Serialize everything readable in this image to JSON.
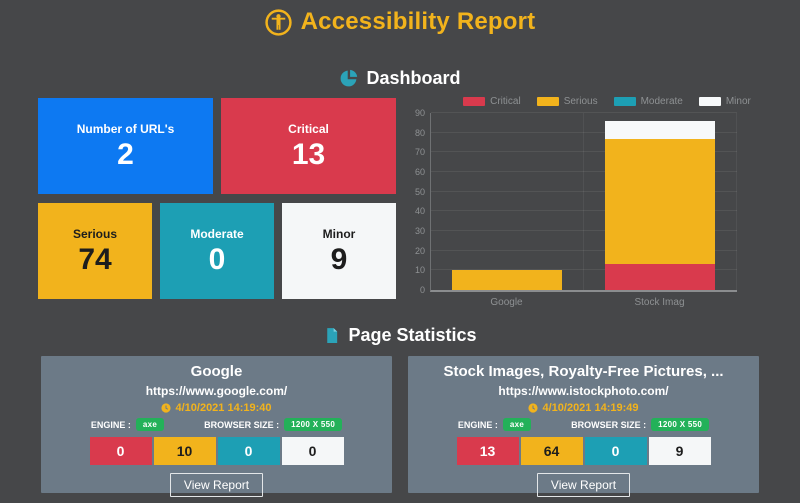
{
  "app": {
    "title": "Accessibility Report"
  },
  "dashboard": {
    "heading": "Dashboard",
    "cards": [
      {
        "label": "Number of URL's",
        "value": "2",
        "color": "#0D79F2"
      },
      {
        "label": "Critical",
        "value": "13",
        "color": "#D93A4D"
      },
      {
        "label": "Serious",
        "value": "74",
        "color": "#F2B31C"
      },
      {
        "label": "Moderate",
        "value": "0",
        "color": "#1D9FB4"
      },
      {
        "label": "Minor",
        "value": "9",
        "color": "#F5F7F8"
      }
    ]
  },
  "chart_data": {
    "type": "bar",
    "stacked": true,
    "title": "",
    "xlabel": "",
    "ylabel": "",
    "categories": [
      "Google",
      "Stock Imag"
    ],
    "series": [
      {
        "name": "Critical",
        "color": "#D93A4D",
        "values": [
          0,
          13
        ]
      },
      {
        "name": "Serious",
        "color": "#F2B31C",
        "values": [
          10,
          64
        ]
      },
      {
        "name": "Moderate",
        "color": "#1D9FB4",
        "values": [
          0,
          0
        ]
      },
      {
        "name": "Minor",
        "color": "#F7F9FA",
        "values": [
          0,
          9
        ]
      }
    ],
    "ylim": [
      0,
      90
    ],
    "ytick_step": 10,
    "grid": true,
    "legend_position": "top"
  },
  "page_statistics": {
    "heading": "Page Statistics",
    "engine_label": "ENGINE :",
    "browser_label": "BROWSER SIZE :",
    "cards": [
      {
        "title": "Google",
        "url": "https://www.google.com/",
        "timestamp": "4/10/2021 14:19:40",
        "engine": "axe",
        "browser_size": "1200 X 550",
        "stats": [
          "0",
          "10",
          "0",
          "0"
        ],
        "view_report_label": "View Report"
      },
      {
        "title": "Stock Images, Royalty-Free Pictures, ...",
        "url": "https://www.istockphoto.com/",
        "timestamp": "4/10/2021 14:19:49",
        "engine": "axe",
        "browser_size": "1200 X 550",
        "stats": [
          "13",
          "64",
          "0",
          "9"
        ],
        "view_report_label": "View Report"
      }
    ]
  },
  "colors": {
    "background": "#464749",
    "accent_gold": "#F2B31C",
    "accent_teal": "#2BA3B8",
    "critical": "#D93A4D",
    "serious": "#F2B31C",
    "moderate": "#1D9FB4",
    "minor": "#F5F7F8",
    "url_count": "#0D79F2",
    "ps_card_bg": "#6C7A87",
    "badge_green": "#23B159"
  }
}
